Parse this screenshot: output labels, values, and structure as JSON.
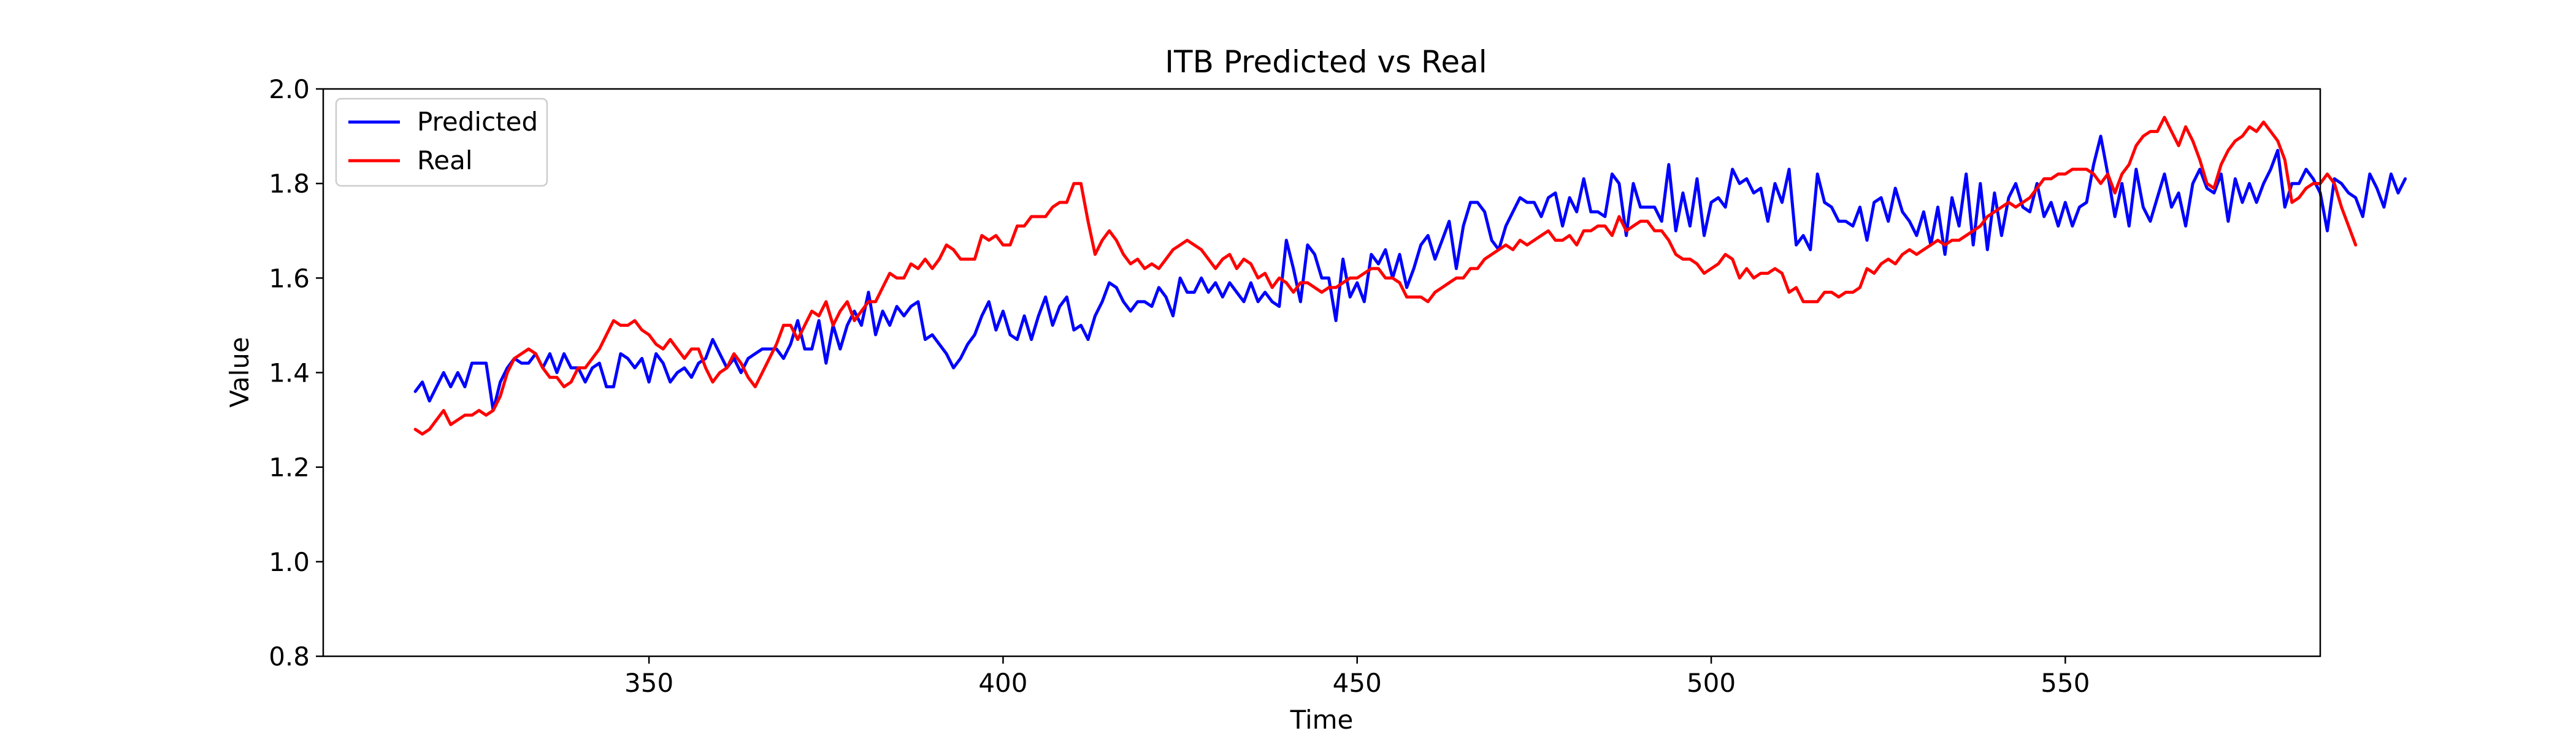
{
  "chart_data": {
    "type": "line",
    "title": "ITB Predicted vs Real",
    "xlabel": "Time",
    "ylabel": "Value",
    "xlim": [
      304,
      586
    ],
    "ylim": [
      0.8,
      2.0
    ],
    "x_ticks": [
      350,
      400,
      450,
      500,
      550
    ],
    "y_ticks": [
      0.8,
      1.0,
      1.2,
      1.4,
      1.6,
      1.8,
      2.0
    ],
    "x_tick_labels": [
      "350",
      "400",
      "450",
      "500",
      "550"
    ],
    "y_tick_labels": [
      "0.8",
      "1.0",
      "1.2",
      "1.4",
      "1.6",
      "1.8",
      "2.0"
    ],
    "grid": false,
    "legend_position": "upper-left",
    "x_start": 317,
    "x_step": 1,
    "series": [
      {
        "name": "Predicted",
        "color": "#0000ff",
        "values": [
          1.36,
          1.38,
          1.34,
          1.37,
          1.4,
          1.37,
          1.4,
          1.37,
          1.42,
          1.42,
          1.42,
          1.32,
          1.38,
          1.41,
          1.43,
          1.42,
          1.42,
          1.44,
          1.41,
          1.44,
          1.4,
          1.44,
          1.41,
          1.41,
          1.38,
          1.41,
          1.42,
          1.37,
          1.37,
          1.44,
          1.43,
          1.41,
          1.43,
          1.38,
          1.44,
          1.42,
          1.38,
          1.4,
          1.41,
          1.39,
          1.42,
          1.43,
          1.47,
          1.44,
          1.41,
          1.43,
          1.4,
          1.43,
          1.44,
          1.45,
          1.45,
          1.45,
          1.43,
          1.46,
          1.51,
          1.45,
          1.45,
          1.51,
          1.42,
          1.5,
          1.45,
          1.5,
          1.53,
          1.5,
          1.57,
          1.48,
          1.53,
          1.5,
          1.54,
          1.52,
          1.54,
          1.55,
          1.47,
          1.48,
          1.46,
          1.44,
          1.41,
          1.43,
          1.46,
          1.48,
          1.52,
          1.55,
          1.49,
          1.53,
          1.48,
          1.47,
          1.52,
          1.47,
          1.52,
          1.56,
          1.5,
          1.54,
          1.56,
          1.49,
          1.5,
          1.47,
          1.52,
          1.55,
          1.59,
          1.58,
          1.55,
          1.53,
          1.55,
          1.55,
          1.54,
          1.58,
          1.56,
          1.52,
          1.6,
          1.57,
          1.57,
          1.6,
          1.57,
          1.59,
          1.56,
          1.59,
          1.57,
          1.55,
          1.59,
          1.55,
          1.57,
          1.55,
          1.54,
          1.68,
          1.62,
          1.55,
          1.67,
          1.65,
          1.6,
          1.6,
          1.51,
          1.64,
          1.56,
          1.59,
          1.55,
          1.65,
          1.63,
          1.66,
          1.6,
          1.65,
          1.58,
          1.62,
          1.67,
          1.69,
          1.64,
          1.68,
          1.72,
          1.62,
          1.71,
          1.76,
          1.76,
          1.74,
          1.68,
          1.66,
          1.71,
          1.74,
          1.77,
          1.76,
          1.76,
          1.73,
          1.77,
          1.78,
          1.71,
          1.77,
          1.74,
          1.81,
          1.74,
          1.74,
          1.73,
          1.82,
          1.8,
          1.69,
          1.8,
          1.75,
          1.75,
          1.75,
          1.72,
          1.84,
          1.7,
          1.78,
          1.71,
          1.81,
          1.69,
          1.76,
          1.77,
          1.75,
          1.83,
          1.8,
          1.81,
          1.78,
          1.79,
          1.72,
          1.8,
          1.76,
          1.83,
          1.67,
          1.69,
          1.66,
          1.82,
          1.76,
          1.75,
          1.72,
          1.72,
          1.71,
          1.75,
          1.68,
          1.76,
          1.77,
          1.72,
          1.79,
          1.74,
          1.72,
          1.69,
          1.74,
          1.67,
          1.75,
          1.65,
          1.77,
          1.71,
          1.82,
          1.67,
          1.8,
          1.66,
          1.78,
          1.69,
          1.77,
          1.8,
          1.75,
          1.74,
          1.8,
          1.73,
          1.76,
          1.71,
          1.76,
          1.71,
          1.75,
          1.76,
          1.84,
          1.9,
          1.82,
          1.73,
          1.8,
          1.71,
          1.83,
          1.75,
          1.72,
          1.77,
          1.82,
          1.75,
          1.78,
          1.71,
          1.8,
          1.83,
          1.79,
          1.78,
          1.82,
          1.72,
          1.81,
          1.76,
          1.8,
          1.76,
          1.8,
          1.83,
          1.87,
          1.75,
          1.8,
          1.8,
          1.83,
          1.81,
          1.78,
          1.7,
          1.81,
          1.8,
          1.78,
          1.77,
          1.73,
          1.82,
          1.79,
          1.75,
          1.82,
          1.78,
          1.81
        ]
      },
      {
        "name": "Real",
        "color": "#ff0000",
        "values": [
          1.28,
          1.27,
          1.28,
          1.3,
          1.32,
          1.29,
          1.3,
          1.31,
          1.31,
          1.32,
          1.31,
          1.32,
          1.35,
          1.4,
          1.43,
          1.44,
          1.45,
          1.44,
          1.41,
          1.39,
          1.39,
          1.37,
          1.38,
          1.41,
          1.41,
          1.43,
          1.45,
          1.48,
          1.51,
          1.5,
          1.5,
          1.51,
          1.49,
          1.48,
          1.46,
          1.45,
          1.47,
          1.45,
          1.43,
          1.45,
          1.45,
          1.41,
          1.38,
          1.4,
          1.41,
          1.44,
          1.42,
          1.39,
          1.37,
          1.4,
          1.43,
          1.46,
          1.5,
          1.5,
          1.47,
          1.5,
          1.53,
          1.52,
          1.55,
          1.5,
          1.53,
          1.55,
          1.51,
          1.53,
          1.55,
          1.55,
          1.58,
          1.61,
          1.6,
          1.6,
          1.63,
          1.62,
          1.64,
          1.62,
          1.64,
          1.67,
          1.66,
          1.64,
          1.64,
          1.64,
          1.69,
          1.68,
          1.69,
          1.67,
          1.67,
          1.71,
          1.71,
          1.73,
          1.73,
          1.73,
          1.75,
          1.76,
          1.76,
          1.8,
          1.8,
          1.72,
          1.65,
          1.68,
          1.7,
          1.68,
          1.65,
          1.63,
          1.64,
          1.62,
          1.63,
          1.62,
          1.64,
          1.66,
          1.67,
          1.68,
          1.67,
          1.66,
          1.64,
          1.62,
          1.64,
          1.65,
          1.62,
          1.64,
          1.63,
          1.6,
          1.61,
          1.58,
          1.6,
          1.59,
          1.57,
          1.59,
          1.59,
          1.58,
          1.57,
          1.58,
          1.58,
          1.59,
          1.6,
          1.6,
          1.61,
          1.62,
          1.62,
          1.6,
          1.6,
          1.59,
          1.56,
          1.56,
          1.56,
          1.55,
          1.57,
          1.58,
          1.59,
          1.6,
          1.6,
          1.62,
          1.62,
          1.64,
          1.65,
          1.66,
          1.67,
          1.66,
          1.68,
          1.67,
          1.68,
          1.69,
          1.7,
          1.68,
          1.68,
          1.69,
          1.67,
          1.7,
          1.7,
          1.71,
          1.71,
          1.69,
          1.73,
          1.7,
          1.71,
          1.72,
          1.72,
          1.7,
          1.7,
          1.68,
          1.65,
          1.64,
          1.64,
          1.63,
          1.61,
          1.62,
          1.63,
          1.65,
          1.64,
          1.6,
          1.62,
          1.6,
          1.61,
          1.61,
          1.62,
          1.61,
          1.57,
          1.58,
          1.55,
          1.55,
          1.55,
          1.57,
          1.57,
          1.56,
          1.57,
          1.57,
          1.58,
          1.62,
          1.61,
          1.63,
          1.64,
          1.63,
          1.65,
          1.66,
          1.65,
          1.66,
          1.67,
          1.68,
          1.67,
          1.68,
          1.68,
          1.69,
          1.7,
          1.71,
          1.73,
          1.74,
          1.75,
          1.76,
          1.75,
          1.76,
          1.77,
          1.79,
          1.81,
          1.81,
          1.82,
          1.82,
          1.83,
          1.83,
          1.83,
          1.82,
          1.8,
          1.82,
          1.78,
          1.82,
          1.84,
          1.88,
          1.9,
          1.91,
          1.91,
          1.94,
          1.91,
          1.88,
          1.92,
          1.89,
          1.85,
          1.8,
          1.79,
          1.84,
          1.87,
          1.89,
          1.9,
          1.92,
          1.91,
          1.93,
          1.91,
          1.89,
          1.85,
          1.76,
          1.77,
          1.79,
          1.8,
          1.8,
          1.82,
          1.8,
          1.75,
          1.71,
          1.67
        ]
      }
    ]
  }
}
